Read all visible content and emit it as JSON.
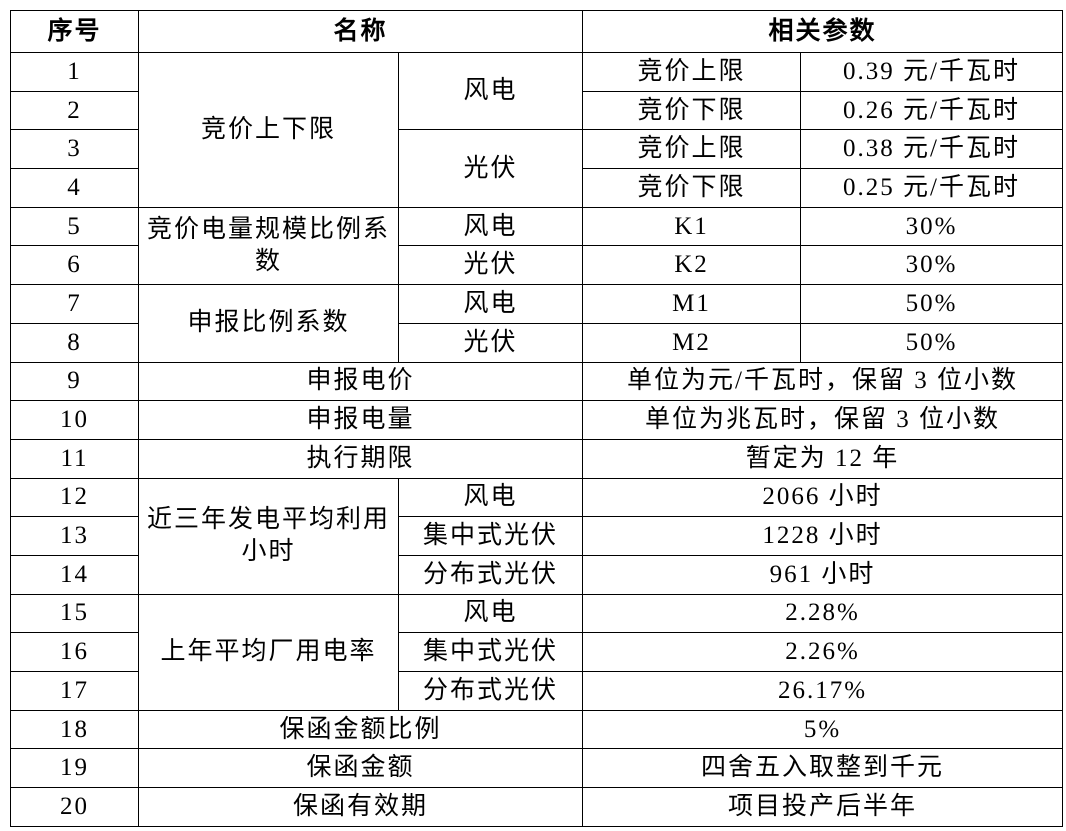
{
  "table": {
    "header": [
      "序号",
      "名称",
      "相关参数"
    ],
    "rows": [
      [
        "1",
        "竞价上下限",
        "风电",
        "竞价上限",
        "0.39 元/千瓦时"
      ],
      [
        "2",
        "竞价下限",
        "0.26 元/千瓦时"
      ],
      [
        "3",
        "光伏",
        "竞价上限",
        "0.38 元/千瓦时"
      ],
      [
        "4",
        "竞价下限",
        "0.25 元/千瓦时"
      ],
      [
        "5",
        "竞价电量规模比例系数",
        "风电",
        "K1",
        "30%"
      ],
      [
        "6",
        "光伏",
        "K2",
        "30%"
      ],
      [
        "7",
        "申报比例系数",
        "风电",
        "M1",
        "50%"
      ],
      [
        "8",
        "光伏",
        "M2",
        "50%"
      ],
      [
        "9",
        "申报电价",
        "单位为元/千瓦时，保留 3 位小数"
      ],
      [
        "10",
        "申报电量",
        "单位为兆瓦时，保留 3 位小数"
      ],
      [
        "11",
        "执行期限",
        "暂定为 12 年"
      ],
      [
        "12",
        "近三年发电平均利用小时",
        "风电",
        "2066 小时"
      ],
      [
        "13",
        "集中式光伏",
        "1228 小时"
      ],
      [
        "14",
        "分布式光伏",
        "961 小时"
      ],
      [
        "15",
        "上年平均厂用电率",
        "风电",
        "2.28%"
      ],
      [
        "16",
        "集中式光伏",
        "2.26%"
      ],
      [
        "17",
        "分布式光伏",
        "26.17%"
      ],
      [
        "18",
        "保函金额比例",
        "5%"
      ],
      [
        "19",
        "保函金额",
        "四舍五入取整到千元"
      ],
      [
        "20",
        "保函有效期",
        "项目投产后半年"
      ]
    ]
  }
}
